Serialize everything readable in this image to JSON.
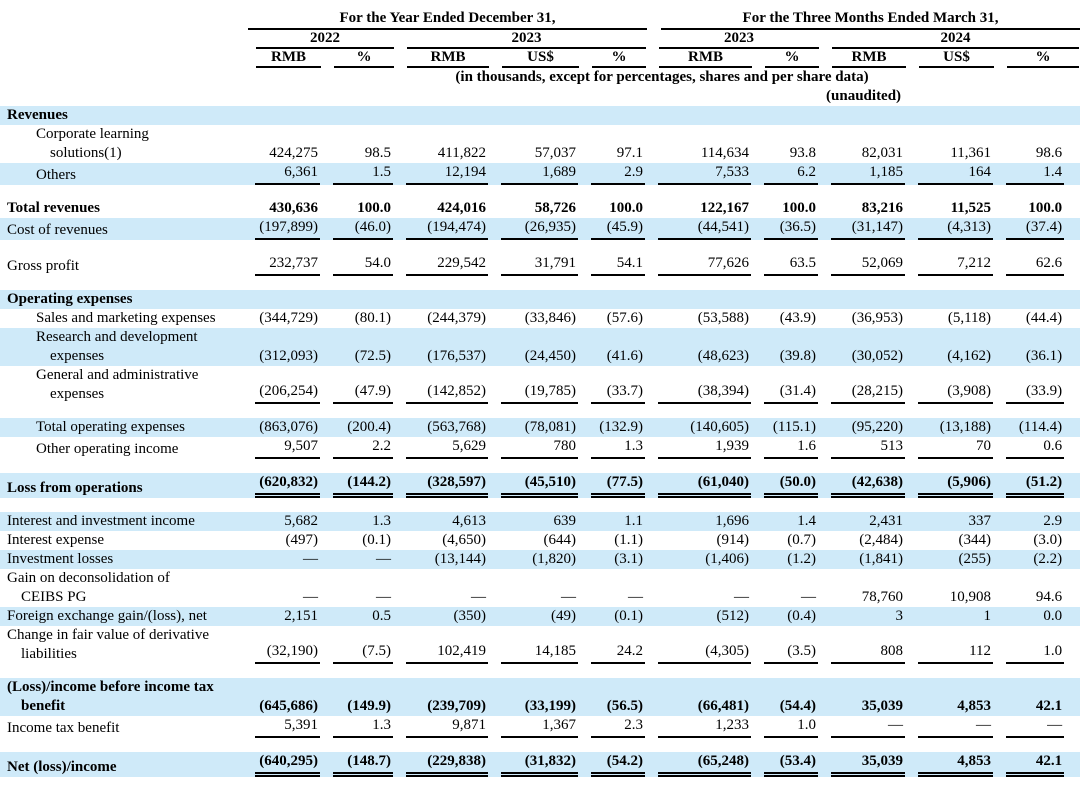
{
  "meta": {
    "shaded_row_color": "#cfeaf9",
    "text_color": "#000000"
  },
  "header": {
    "group_year_title": "For the Year Ended December 31,",
    "group_quarter_title": "For the Three Months Ended March 31,",
    "year_groups": [
      {
        "label": "2022"
      },
      {
        "label": "2023"
      },
      {
        "label": "2023"
      },
      {
        "label": "2024"
      }
    ],
    "unit_cols": [
      "RMB",
      "%",
      "RMB",
      "US$",
      "%",
      "RMB",
      "%",
      "RMB",
      "US$",
      "%"
    ],
    "note": "(in thousands, except for percentages, shares and per share data)",
    "unaudited": "(unaudited)"
  },
  "rows": [
    {
      "label_lines": [
        "Revenues"
      ],
      "indent": 0,
      "bold": true,
      "shaded": true,
      "underline": "none",
      "values": [
        "",
        "",
        "",
        "",
        "",
        "",
        "",
        "",
        "",
        ""
      ]
    },
    {
      "label_lines": [
        "Corporate learning",
        "solutions(1)"
      ],
      "indent": 1,
      "bold": false,
      "shaded": false,
      "underline": "none",
      "values": [
        "424,275",
        "98.5",
        "411,822",
        "57,037",
        "97.1",
        "114,634",
        "93.8",
        "82,031",
        "11,361",
        "98.6"
      ]
    },
    {
      "label_lines": [
        "Others"
      ],
      "indent": 1,
      "bold": false,
      "shaded": true,
      "underline": "single",
      "values": [
        "6,361",
        "1.5",
        "12,194",
        "1,689",
        "2.9",
        "7,533",
        "6.2",
        "1,185",
        "164",
        "1.4"
      ]
    },
    {
      "spacer": true
    },
    {
      "label_lines": [
        "Total revenues"
      ],
      "indent": 0,
      "bold": true,
      "shaded": false,
      "underline": "none",
      "values": [
        "430,636",
        "100.0",
        "424,016",
        "58,726",
        "100.0",
        "122,167",
        "100.0",
        "83,216",
        "11,525",
        "100.0"
      ]
    },
    {
      "label_lines": [
        "Cost of revenues"
      ],
      "indent": 0,
      "bold": false,
      "shaded": true,
      "underline": "single",
      "values": [
        "(197,899)",
        "(46.0)",
        "(194,474)",
        "(26,935)",
        "(45.9)",
        "(44,541)",
        "(36.5)",
        "(31,147)",
        "(4,313)",
        "(37.4)"
      ]
    },
    {
      "spacer": true
    },
    {
      "label_lines": [
        "Gross profit"
      ],
      "indent": 0,
      "bold": false,
      "shaded": false,
      "underline": "single",
      "values": [
        "232,737",
        "54.0",
        "229,542",
        "31,791",
        "54.1",
        "77,626",
        "63.5",
        "52,069",
        "7,212",
        "62.6"
      ]
    },
    {
      "spacer": true
    },
    {
      "label_lines": [
        "Operating expenses"
      ],
      "indent": 0,
      "bold": true,
      "shaded": true,
      "underline": "none",
      "values": [
        "",
        "",
        "",
        "",
        "",
        "",
        "",
        "",
        "",
        ""
      ]
    },
    {
      "label_lines": [
        "Sales and marketing expenses"
      ],
      "indent": 1,
      "bold": false,
      "shaded": false,
      "underline": "none",
      "values": [
        "(344,729)",
        "(80.1)",
        "(244,379)",
        "(33,846)",
        "(57.6)",
        "(53,588)",
        "(43.9)",
        "(36,953)",
        "(5,118)",
        "(44.4)"
      ]
    },
    {
      "label_lines": [
        "Research and development",
        "expenses"
      ],
      "indent": 1,
      "bold": false,
      "shaded": true,
      "underline": "none",
      "values": [
        "(312,093)",
        "(72.5)",
        "(176,537)",
        "(24,450)",
        "(41.6)",
        "(48,623)",
        "(39.8)",
        "(30,052)",
        "(4,162)",
        "(36.1)"
      ]
    },
    {
      "label_lines": [
        "General and administrative",
        "expenses"
      ],
      "indent": 1,
      "bold": false,
      "shaded": false,
      "underline": "single",
      "values": [
        "(206,254)",
        "(47.9)",
        "(142,852)",
        "(19,785)",
        "(33.7)",
        "(38,394)",
        "(31.4)",
        "(28,215)",
        "(3,908)",
        "(33.9)"
      ]
    },
    {
      "spacer": true
    },
    {
      "label_lines": [
        "Total operating expenses"
      ],
      "indent": 1,
      "bold": false,
      "shaded": true,
      "underline": "none",
      "values": [
        "(863,076)",
        "(200.4)",
        "(563,768)",
        "(78,081)",
        "(132.9)",
        "(140,605)",
        "(115.1)",
        "(95,220)",
        "(13,188)",
        "(114.4)"
      ]
    },
    {
      "label_lines": [
        "Other operating income"
      ],
      "indent": 1,
      "bold": false,
      "shaded": false,
      "underline": "single",
      "values": [
        "9,507",
        "2.2",
        "5,629",
        "780",
        "1.3",
        "1,939",
        "1.6",
        "513",
        "70",
        "0.6"
      ]
    },
    {
      "spacer": true
    },
    {
      "label_lines": [
        "Loss from operations"
      ],
      "indent": 0,
      "bold": true,
      "shaded": true,
      "underline": "double",
      "values": [
        "(620,832)",
        "(144.2)",
        "(328,597)",
        "(45,510)",
        "(77.5)",
        "(61,040)",
        "(50.0)",
        "(42,638)",
        "(5,906)",
        "(51.2)"
      ]
    },
    {
      "spacer": true
    },
    {
      "label_lines": [
        "Interest and investment income"
      ],
      "indent": 0,
      "bold": false,
      "shaded": true,
      "underline": "none",
      "values": [
        "5,682",
        "1.3",
        "4,613",
        "639",
        "1.1",
        "1,696",
        "1.4",
        "2,431",
        "337",
        "2.9"
      ]
    },
    {
      "label_lines": [
        "Interest expense"
      ],
      "indent": 0,
      "bold": false,
      "shaded": false,
      "underline": "none",
      "values": [
        "(497)",
        "(0.1)",
        "(4,650)",
        "(644)",
        "(1.1)",
        "(914)",
        "(0.7)",
        "(2,484)",
        "(344)",
        "(3.0)"
      ]
    },
    {
      "label_lines": [
        "Investment losses"
      ],
      "indent": 0,
      "bold": false,
      "shaded": true,
      "underline": "none",
      "values": [
        "—",
        "—",
        "(13,144)",
        "(1,820)",
        "(3.1)",
        "(1,406)",
        "(1.2)",
        "(1,841)",
        "(255)",
        "(2.2)"
      ]
    },
    {
      "label_lines": [
        "Gain on deconsolidation of",
        "CEIBS PG"
      ],
      "indent": 0,
      "bold": false,
      "shaded": false,
      "underline": "none",
      "values": [
        "—",
        "—",
        "—",
        "—",
        "—",
        "—",
        "—",
        "78,760",
        "10,908",
        "94.6"
      ]
    },
    {
      "label_lines": [
        "Foreign exchange gain/(loss), net"
      ],
      "indent": 0,
      "bold": false,
      "shaded": true,
      "underline": "none",
      "values": [
        "2,151",
        "0.5",
        "(350)",
        "(49)",
        "(0.1)",
        "(512)",
        "(0.4)",
        "3",
        "1",
        "0.0"
      ]
    },
    {
      "label_lines": [
        "Change in fair value of derivative",
        "liabilities"
      ],
      "indent": 0,
      "bold": false,
      "shaded": false,
      "underline": "single",
      "values": [
        "(32,190)",
        "(7.5)",
        "102,419",
        "14,185",
        "24.2",
        "(4,305)",
        "(3.5)",
        "808",
        "112",
        "1.0"
      ]
    },
    {
      "spacer": true
    },
    {
      "label_lines": [
        "(Loss)/income before income tax",
        "benefit"
      ],
      "indent": 0,
      "bold": true,
      "shaded": true,
      "underline": "none",
      "values": [
        "(645,686)",
        "(149.9)",
        "(239,709)",
        "(33,199)",
        "(56.5)",
        "(66,481)",
        "(54.4)",
        "35,039",
        "4,853",
        "42.1"
      ]
    },
    {
      "label_lines": [
        "Income tax benefit"
      ],
      "indent": 0,
      "bold": false,
      "shaded": false,
      "underline": "single",
      "values": [
        "5,391",
        "1.3",
        "9,871",
        "1,367",
        "2.3",
        "1,233",
        "1.0",
        "—",
        "—",
        "—"
      ]
    },
    {
      "spacer": true
    },
    {
      "label_lines": [
        "Net (loss)/income"
      ],
      "indent": 0,
      "bold": true,
      "shaded": true,
      "underline": "double",
      "values": [
        "(640,295)",
        "(148.7)",
        "(229,838)",
        "(31,832)",
        "(54.2)",
        "(65,248)",
        "(53.4)",
        "35,039",
        "4,853",
        "42.1"
      ]
    }
  ]
}
